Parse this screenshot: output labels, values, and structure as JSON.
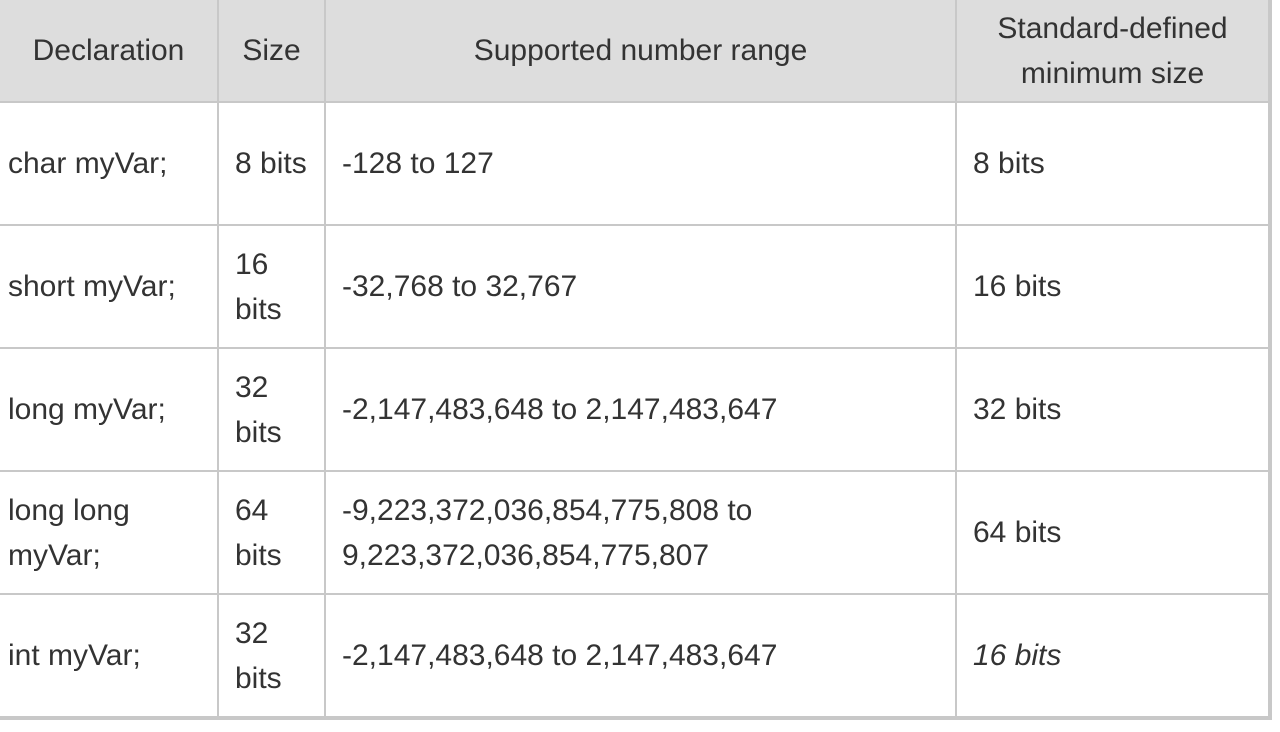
{
  "table": {
    "headers": [
      "Declaration",
      "Size",
      "Supported number range",
      "Standard-defined minimum size"
    ],
    "rows": [
      {
        "declaration": "char myVar;",
        "size": "8 bits",
        "range": "-128 to 127",
        "min_size": "8 bits",
        "min_italic": false
      },
      {
        "declaration": "short myVar;",
        "size": "16 bits",
        "range": "-32,768 to 32,767",
        "min_size": "16 bits",
        "min_italic": false
      },
      {
        "declaration": "long myVar;",
        "size": "32 bits",
        "range": "-2,147,483,648 to 2,147,483,647",
        "min_size": "32 bits",
        "min_italic": false
      },
      {
        "declaration": "long long myVar;",
        "size": "64 bits",
        "range": "-9,223,372,036,854,775,808 to 9,223,372,036,854,775,807",
        "min_size": "64 bits",
        "min_italic": false
      },
      {
        "declaration": "int myVar;",
        "size": "32 bits",
        "range": "-2,147,483,648 to 2,147,483,647",
        "min_size": "16 bits",
        "min_italic": true
      }
    ]
  }
}
